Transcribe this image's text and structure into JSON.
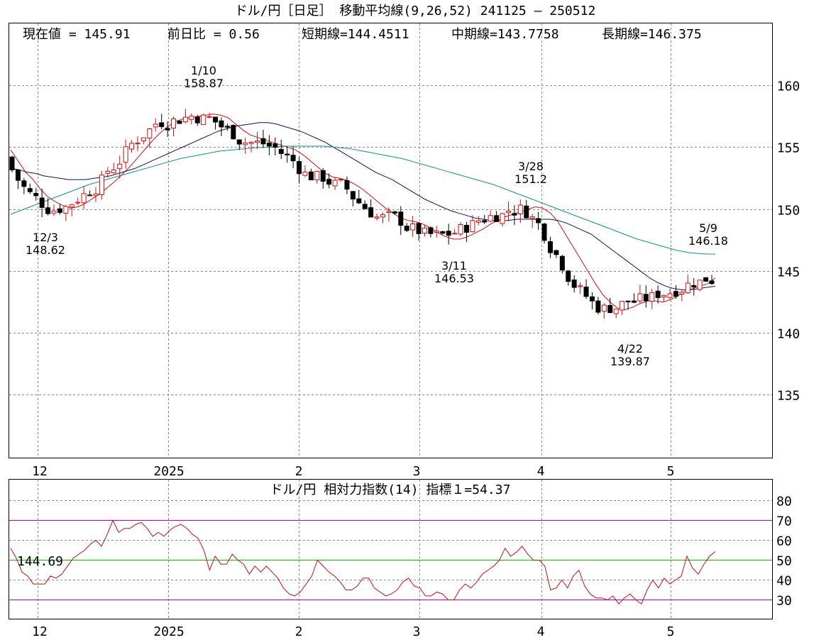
{
  "title": "ドル/円［日足］ 移動平均線(9,26,52)  241125 – 250512",
  "info": {
    "current": "現在値 = 145.91",
    "change": "前日比 = 0.56",
    "short": "短期線=144.4511",
    "mid": "中期線=143.7758",
    "long": "長期線=146.375"
  },
  "colors": {
    "short_ma": "#d01010",
    "mid_ma": "#101060",
    "long_ma": "#109090",
    "up_candle": "#d01010",
    "down_candle": "#000000",
    "rsi_line": "#c01010",
    "rsi_band": "#cc00cc",
    "rsi_mid": "#00cc00",
    "rsi_value_text": "#c01010"
  },
  "x_axis": {
    "labels": [
      "12",
      "2025",
      "2",
      "3",
      "4",
      "5"
    ]
  },
  "chart_data": [
    {
      "type": "candlestick",
      "y_ticks": [
        "160",
        "155",
        "150",
        "145",
        "140",
        "135"
      ],
      "ylim": [
        130,
        163
      ],
      "annotations": [
        {
          "date": "12/3",
          "value": "148.62"
        },
        {
          "date": "1/10",
          "value": "158.87"
        },
        {
          "date": "3/11",
          "value": "146.53"
        },
        {
          "date": "3/28",
          "value": "151.2"
        },
        {
          "date": "4/22",
          "value": "139.87"
        },
        {
          "date": "5/9",
          "value": "146.18"
        }
      ],
      "series": [
        {
          "name": "短期線",
          "values": [
            154.8,
            153.9,
            153.0,
            152.4,
            151.6,
            151.0,
            150.6,
            150.3,
            150.1,
            150.2,
            150.5,
            150.9,
            151.3,
            151.8,
            152.3,
            152.9,
            153.5,
            154.2,
            154.9,
            155.6,
            156.2,
            156.7,
            157.1,
            157.3,
            157.4,
            157.5,
            157.6,
            157.7,
            157.6,
            157.4,
            156.9,
            156.4,
            156.0,
            155.8,
            155.6,
            155.4,
            155.2,
            155.0,
            154.8,
            154.4,
            153.9,
            153.4,
            152.9,
            152.6,
            152.5,
            152.3,
            152.0,
            151.6,
            151.1,
            150.6,
            150.1,
            149.7,
            149.3,
            149.1,
            149.0,
            148.8,
            148.5,
            148.1,
            147.8,
            147.6,
            147.6,
            147.8,
            148.1,
            148.4,
            148.8,
            149.1,
            149.4,
            149.6,
            149.8,
            150.0,
            150.2,
            150.1,
            149.7,
            149.0,
            148.0,
            147.0,
            146.0,
            145.0,
            144.0,
            143.1,
            142.5,
            142.0,
            141.9,
            142.1,
            142.4,
            142.6,
            142.6,
            142.5,
            142.7,
            143.0,
            143.4,
            143.6,
            143.8,
            144.0,
            144.45
          ]
        },
        {
          "name": "中期線",
          "values": [
            153.3,
            153.2,
            153.0,
            152.9,
            152.7,
            152.6,
            152.5,
            152.4,
            152.4,
            152.4,
            152.5,
            152.6,
            152.7,
            152.9,
            153.1,
            153.3,
            153.6,
            153.9,
            154.2,
            154.5,
            154.8,
            155.1,
            155.4,
            155.7,
            156.0,
            156.3,
            156.5,
            156.7,
            156.8,
            156.9,
            157.0,
            157.0,
            156.9,
            156.7,
            156.5,
            156.3,
            156.0,
            155.7,
            155.4,
            155.0,
            154.6,
            154.2,
            153.8,
            153.4,
            153.0,
            152.7,
            152.4,
            152.0,
            151.6,
            151.2,
            150.8,
            150.5,
            150.2,
            149.9,
            149.7,
            149.5,
            149.3,
            149.2,
            149.1,
            149.1,
            149.1,
            149.2,
            149.2,
            149.2,
            149.2,
            149.2,
            149.1,
            148.9,
            148.6,
            148.3,
            148.0,
            147.5,
            147.0,
            146.5,
            146.0,
            145.5,
            145.0,
            144.5,
            144.1,
            143.8,
            143.6,
            143.5,
            143.5,
            143.6,
            143.7,
            143.78
          ]
        },
        {
          "name": "長期線",
          "values": [
            149.6,
            150.0,
            150.4,
            150.8,
            151.2,
            151.6,
            152.0,
            152.3,
            152.6,
            152.9,
            153.2,
            153.5,
            153.8,
            154.1,
            154.3,
            154.5,
            154.7,
            154.8,
            154.9,
            155.0,
            155.0,
            155.1,
            155.1,
            155.1,
            155.1,
            155.0,
            154.9,
            154.7,
            154.5,
            154.3,
            154.1,
            153.8,
            153.5,
            153.2,
            152.9,
            152.6,
            152.3,
            152.0,
            151.6,
            151.2,
            150.8,
            150.4,
            150.0,
            149.6,
            149.2,
            148.8,
            148.4,
            148.0,
            147.6,
            147.3,
            147.0,
            146.7,
            146.5,
            146.4,
            146.375
          ]
        }
      ]
    },
    {
      "type": "line",
      "title": "ドル/円    相対力指数(14) 指標１=54.37",
      "value_label": "144.69",
      "y_ticks": [
        "80",
        "70",
        "60",
        "50",
        "40",
        "30"
      ],
      "ylim": [
        20,
        87
      ],
      "lines": [
        70,
        50,
        30
      ],
      "values": [
        56,
        51,
        44,
        42,
        38,
        38,
        38,
        42,
        41,
        43,
        47,
        51,
        53,
        55,
        58,
        60,
        57,
        63,
        70,
        64,
        66,
        66,
        68,
        69,
        66,
        62,
        64,
        62,
        65,
        67,
        68,
        66,
        63,
        61,
        55,
        45,
        52,
        48,
        48,
        53,
        50,
        48,
        43,
        47,
        44,
        47,
        44,
        41,
        36,
        33,
        32,
        34,
        38,
        42,
        50,
        47,
        44,
        42,
        39,
        35,
        35,
        37,
        41,
        41,
        36,
        34,
        32,
        33,
        35,
        39,
        41,
        37,
        36,
        32,
        32,
        34,
        33,
        30,
        30,
        35,
        38,
        36,
        39,
        43,
        45,
        47,
        50,
        56,
        52,
        54,
        57,
        53,
        50,
        50,
        47,
        35,
        36,
        40,
        36,
        42,
        45,
        37,
        33,
        31,
        31,
        30,
        32,
        28,
        31,
        33,
        30,
        28,
        35,
        40,
        36,
        41,
        38,
        40,
        42,
        52,
        46,
        43,
        48,
        52,
        54.37
      ]
    }
  ]
}
